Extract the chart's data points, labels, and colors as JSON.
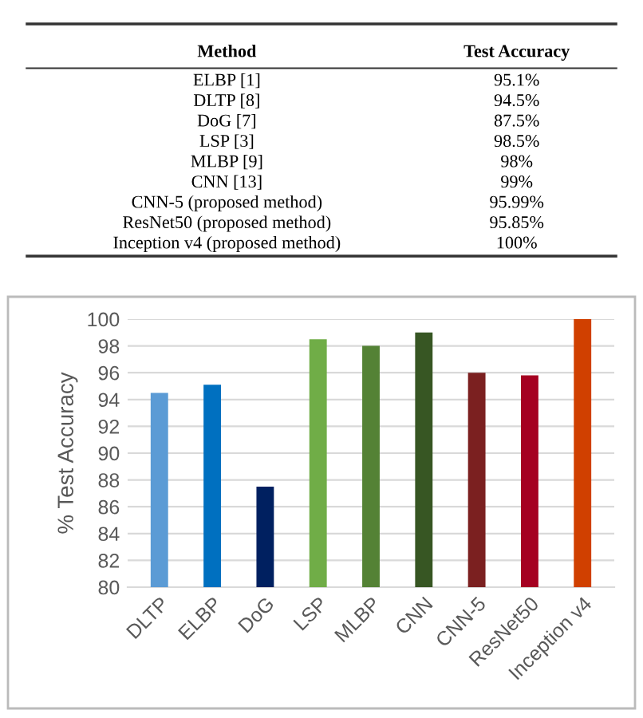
{
  "chart_data": [
    {
      "type": "other",
      "xlabel": "Method",
      "ylabel": "Test Accuracy",
      "categories": [
        "ELBP [1]",
        "DLTP [8]",
        "DoG [7]",
        "LSP [3]",
        "MLBP [9]",
        "CNN [13]",
        "CNN-5 (proposed method)",
        "ResNet50 (proposed method)",
        "Inception v4 (proposed method)"
      ],
      "value_labels": [
        "95.1%",
        "94.5%",
        "87.5%",
        "98.5%",
        "98%",
        "99%",
        "95.99%",
        "95.85%",
        "100%"
      ]
    },
    {
      "type": "bar",
      "ylabel": "% Test Accuracy",
      "categories": [
        "DLTP",
        "ELBP",
        "DoG",
        "LSP",
        "MLBP",
        "CNN",
        "CNN-5",
        "ResNet50",
        "Inception v4"
      ],
      "values": [
        94.5,
        95.1,
        87.5,
        98.5,
        98,
        99,
        96,
        95.8,
        100
      ],
      "colors": [
        "#5b9bd5",
        "#0070c0",
        "#002060",
        "#70ad47",
        "#548235",
        "#375623",
        "#7b2020",
        "#a50021",
        "#d04000"
      ],
      "ylim": [
        80,
        100
      ],
      "yticks": [
        80,
        82,
        84,
        86,
        88,
        90,
        92,
        94,
        96,
        98,
        100
      ],
      "grid": "y"
    }
  ]
}
